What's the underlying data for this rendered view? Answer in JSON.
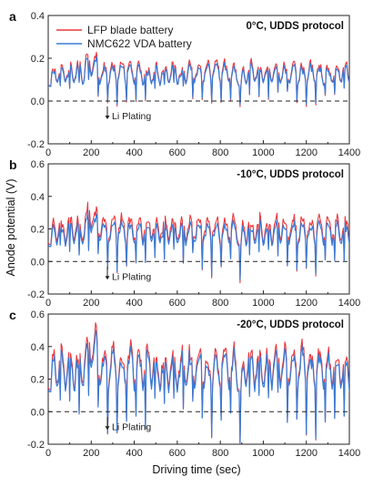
{
  "figure": {
    "shared_ylabel": "Anode potential (V)",
    "shared_xlabel": "Driving time (sec)",
    "legend": [
      {
        "label": "LFP blade battery",
        "color": "#e8383d"
      },
      {
        "label": "NMC622 VDA battery",
        "color": "#3a7bd5"
      }
    ],
    "annotation_text": "Li Plating"
  },
  "chart_data": [
    {
      "type": "line",
      "panel": "a",
      "title": "0°C, UDDS protocol",
      "xlabel": "Driving time (sec)",
      "ylabel": "Anode potential (V)",
      "xlim": [
        0,
        1400
      ],
      "ylim": [
        -0.2,
        0.4
      ],
      "xticks": [
        "0",
        "200",
        "400",
        "600",
        "800",
        "1000",
        "1200",
        "1400"
      ],
      "yticks": [
        "-0.2",
        "0.0",
        "0.2",
        "0.4"
      ],
      "reference_line": 0.0,
      "annotation": {
        "text": "Li Plating",
        "x": 275
      },
      "series": [
        {
          "name": "LFP blade battery",
          "color": "#e8383d",
          "amplitude": 0.09,
          "base": 0.095,
          "x": [
            0,
            1400
          ]
        },
        {
          "name": "NMC622 VDA battery",
          "color": "#3a7bd5",
          "amplitude": 0.085,
          "base": 0.09,
          "x": [
            0,
            1400
          ]
        }
      ]
    },
    {
      "type": "line",
      "panel": "b",
      "title": "-10°C, UDDS protocol",
      "xlabel": "Driving time (sec)",
      "ylabel": "Anode potential (V)",
      "xlim": [
        0,
        1400
      ],
      "ylim": [
        -0.2,
        0.6
      ],
      "xticks": [
        "0",
        "200",
        "400",
        "600",
        "800",
        "1000",
        "1200",
        "1400"
      ],
      "yticks": [
        "-0.2",
        "0.0",
        "0.2",
        "0.4",
        "0.6"
      ],
      "reference_line": 0.0,
      "annotation": {
        "text": "Li Plating",
        "x": 275
      },
      "series": [
        {
          "name": "LFP blade battery",
          "color": "#e8383d",
          "amplitude": 0.15,
          "base": 0.14,
          "x": [
            0,
            1400
          ]
        },
        {
          "name": "NMC622 VDA battery",
          "color": "#3a7bd5",
          "amplitude": 0.14,
          "base": 0.12,
          "x": [
            0,
            1400
          ]
        }
      ]
    },
    {
      "type": "line",
      "panel": "c",
      "title": "-20°C, UDDS protocol",
      "xlabel": "Driving time (sec)",
      "ylabel": "Anode potential (V)",
      "xlim": [
        0,
        1400
      ],
      "ylim": [
        -0.2,
        0.6
      ],
      "xticks": [
        "0",
        "200",
        "400",
        "600",
        "800",
        "1000",
        "1200",
        "1400"
      ],
      "yticks": [
        "-0.2",
        "0.0",
        "0.2",
        "0.4",
        "0.6"
      ],
      "reference_line": 0.0,
      "annotation": {
        "text": "Li Plating",
        "x": 275
      },
      "series": [
        {
          "name": "LFP blade battery",
          "color": "#e8383d",
          "amplitude": 0.24,
          "base": 0.18,
          "x": [
            0,
            1400
          ]
        },
        {
          "name": "NMC622 VDA battery",
          "color": "#3a7bd5",
          "amplitude": 0.24,
          "base": 0.16,
          "x": [
            0,
            1400
          ]
        }
      ]
    }
  ]
}
